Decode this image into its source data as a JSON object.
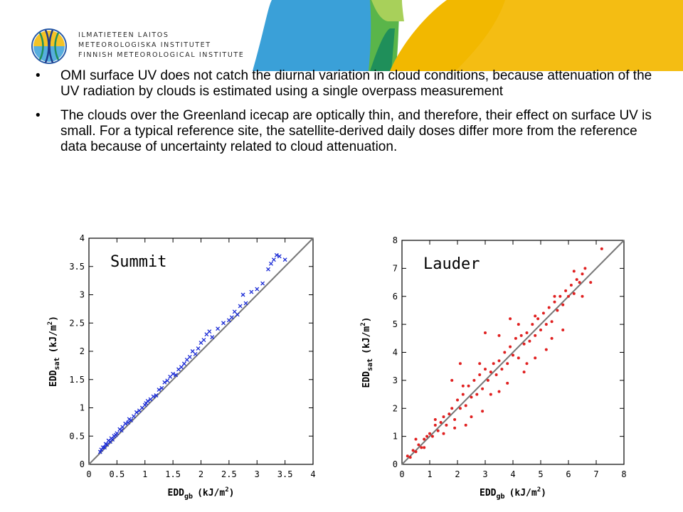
{
  "header": {
    "logo_lines": [
      "ILMATIETEEN LAITOS",
      "METEOROLOGISKA INSTITUTET",
      "FINNISH METEOROLOGICAL INSTITUTE"
    ],
    "banner_colors": [
      "#3aa0d8",
      "#78c04a",
      "#f2b800",
      "#1f8f5a"
    ]
  },
  "bullets": [
    {
      "symbol": "•",
      "text": "OMI surface UV does not catch the diurnal variation in cloud conditions, because attenuation of the UV radiation by clouds is estimated using a single overpass measurement"
    },
    {
      "symbol": "•",
      "text": "The clouds over the Greenland icecap are optically thin, and therefore, their effect on surface UV is small. For a typical reference site, the satellite-derived daily doses differ more from the reference data because of uncertainty related to cloud attenuation."
    }
  ],
  "chart_data": [
    {
      "type": "scatter",
      "title": "Summit",
      "xlabel": "EDD",
      "xlabel_sub": "gb",
      "xlabel_unit": "(kJ/m",
      "xlabel_sup": "2",
      "xlabel_close": ")",
      "ylabel": "EDD",
      "ylabel_sub": "sat",
      "ylabel_unit": "(kJ/m",
      "ylabel_sup": "2",
      "ylabel_close": ")",
      "xlim": [
        0,
        4
      ],
      "ylim": [
        0,
        4
      ],
      "xticks": [
        "0",
        "0.5",
        "1",
        "1.5",
        "2",
        "2.5",
        "3",
        "3.5",
        "4"
      ],
      "yticks": [
        "0",
        "0.5",
        "1",
        "1.5",
        "2",
        "2.5",
        "3",
        "3.5",
        "4"
      ],
      "marker": "x",
      "color": "#1a2bd6",
      "reference_line": "1:1",
      "series": [
        {
          "x": [
            0.2,
            0.22,
            0.25,
            0.28,
            0.3,
            0.32,
            0.35,
            0.38,
            0.4,
            0.42,
            0.45,
            0.48,
            0.5,
            0.55,
            0.58,
            0.6,
            0.65,
            0.7,
            0.72,
            0.75,
            0.8,
            0.85,
            0.9,
            0.95,
            1.0,
            1.02,
            1.05,
            1.1,
            1.15,
            1.2,
            1.25,
            1.3,
            1.35,
            1.4,
            1.45,
            1.5,
            1.55,
            1.6,
            1.65,
            1.7,
            1.75,
            1.8,
            1.85,
            1.9,
            1.95,
            2.0,
            2.05,
            2.1,
            2.15,
            2.2,
            2.3,
            2.4,
            2.5,
            2.55,
            2.6,
            2.65,
            2.7,
            2.75,
            2.8,
            2.9,
            3.0,
            3.1,
            3.2,
            3.25,
            3.3,
            3.35,
            3.4,
            3.5
          ],
          "y": [
            0.22,
            0.26,
            0.3,
            0.3,
            0.36,
            0.35,
            0.42,
            0.4,
            0.46,
            0.44,
            0.5,
            0.52,
            0.55,
            0.62,
            0.6,
            0.66,
            0.72,
            0.74,
            0.8,
            0.78,
            0.85,
            0.92,
            0.95,
            1.0,
            1.05,
            1.08,
            1.12,
            1.15,
            1.2,
            1.22,
            1.32,
            1.35,
            1.45,
            1.48,
            1.55,
            1.6,
            1.58,
            1.68,
            1.72,
            1.78,
            1.85,
            1.9,
            2.0,
            1.95,
            2.05,
            2.15,
            2.2,
            2.3,
            2.35,
            2.25,
            2.4,
            2.5,
            2.55,
            2.6,
            2.7,
            2.65,
            2.8,
            3.0,
            2.85,
            3.05,
            3.1,
            3.2,
            3.45,
            3.55,
            3.62,
            3.7,
            3.68,
            3.62
          ]
        }
      ]
    },
    {
      "type": "scatter",
      "title": "Lauder",
      "xlabel": "EDD",
      "xlabel_sub": "gb",
      "xlabel_unit": "(kJ/m",
      "xlabel_sup": "2",
      "xlabel_close": ")",
      "ylabel": "EDD",
      "ylabel_sub": "sat",
      "ylabel_unit": "(kJ/m",
      "ylabel_sup": "2",
      "ylabel_close": ")",
      "xlim": [
        0,
        8
      ],
      "ylim": [
        0,
        8
      ],
      "xticks": [
        "0",
        "1",
        "2",
        "3",
        "4",
        "5",
        "6",
        "7",
        "8"
      ],
      "yticks": [
        "0",
        "1",
        "2",
        "3",
        "4",
        "5",
        "6",
        "7",
        "8"
      ],
      "marker": "dot",
      "color": "#e02020",
      "reference_line": "1:1",
      "series": [
        {
          "x": [
            0.2,
            0.3,
            0.4,
            0.5,
            0.6,
            0.7,
            0.8,
            0.9,
            1.0,
            1.1,
            1.2,
            1.3,
            1.4,
            1.5,
            1.6,
            1.7,
            1.8,
            1.9,
            2.0,
            2.1,
            2.2,
            2.3,
            2.4,
            2.5,
            2.6,
            2.7,
            2.8,
            2.9,
            3.0,
            3.1,
            3.2,
            3.3,
            3.4,
            3.5,
            3.6,
            3.7,
            3.8,
            3.9,
            4.0,
            4.1,
            4.2,
            4.3,
            4.4,
            4.5,
            4.6,
            4.7,
            4.8,
            4.9,
            5.0,
            5.1,
            5.2,
            5.3,
            5.4,
            5.5,
            5.6,
            5.7,
            5.8,
            5.9,
            6.0,
            6.1,
            6.2,
            6.3,
            6.4,
            6.5,
            6.6,
            6.8,
            7.2,
            0.5,
            0.8,
            1.2,
            1.5,
            1.9,
            2.2,
            2.5,
            2.8,
            3.2,
            3.5,
            3.8,
            4.2,
            4.5,
            4.8,
            5.2,
            5.5,
            5.8,
            6.2,
            6.5,
            2.1,
            3.0,
            3.9,
            4.8,
            5.4,
            2.9,
            3.5,
            4.4,
            1.8,
            2.3
          ],
          "y": [
            0.3,
            0.25,
            0.5,
            0.45,
            0.7,
            0.6,
            0.9,
            1.0,
            1.1,
            1.0,
            1.4,
            1.2,
            1.5,
            1.7,
            1.4,
            1.8,
            2.0,
            1.6,
            2.3,
            2.0,
            2.5,
            2.1,
            2.8,
            2.4,
            3.0,
            2.5,
            3.2,
            2.7,
            3.4,
            3.0,
            3.3,
            3.6,
            3.2,
            3.7,
            3.4,
            4.0,
            3.6,
            4.2,
            3.9,
            4.5,
            3.8,
            4.6,
            4.3,
            4.7,
            4.4,
            5.0,
            4.6,
            5.2,
            4.8,
            5.4,
            5.0,
            5.6,
            5.1,
            5.8,
            5.5,
            6.0,
            5.7,
            6.2,
            6.0,
            6.4,
            6.1,
            6.6,
            6.5,
            6.8,
            7.0,
            6.5,
            7.7,
            0.9,
            0.6,
            1.6,
            1.1,
            1.3,
            2.8,
            1.7,
            3.6,
            2.5,
            4.6,
            2.9,
            5.0,
            3.6,
            5.3,
            4.1,
            6.0,
            4.8,
            6.9,
            6.0,
            3.6,
            4.7,
            5.2,
            3.8,
            4.5,
            1.9,
            2.6,
            3.3,
            3.0,
            1.4
          ]
        }
      ]
    }
  ]
}
